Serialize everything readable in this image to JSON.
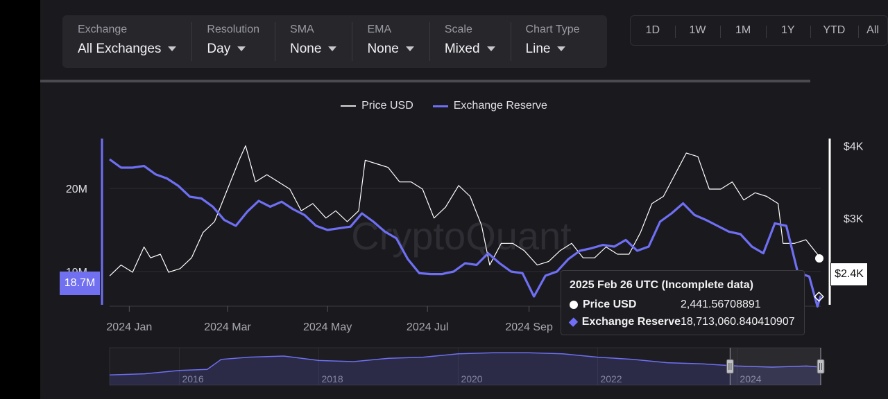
{
  "toolbar": {
    "groups": [
      {
        "label": "Exchange",
        "value": "All Exchanges"
      },
      {
        "label": "Resolution",
        "value": "Day"
      },
      {
        "label": "SMA",
        "value": "None"
      },
      {
        "label": "EMA",
        "value": "None"
      },
      {
        "label": "Scale",
        "value": "Mixed"
      },
      {
        "label": "Chart Type",
        "value": "Line"
      }
    ]
  },
  "ranges": [
    "1D",
    "1W",
    "1M",
    "1Y",
    "YTD",
    "All"
  ],
  "legend": {
    "price": "Price USD",
    "reserve": "Exchange Reserve"
  },
  "watermark": "CryptoQuant",
  "colors": {
    "price": "#ffffff",
    "reserve": "#6f6ff5",
    "background": "#1a1a1e",
    "panel": "#26262b"
  },
  "tooltip": {
    "title": "2025 Feb 26 UTC (Incomplete data)",
    "rows": [
      {
        "name": "Price USD",
        "value": "2,441.56708891"
      },
      {
        "name": "Exchange Reserve",
        "value": "18,713,060.840410907"
      }
    ]
  },
  "badges": {
    "left": "18.7M",
    "right": "$2.4K"
  },
  "chart_data": {
    "type": "line",
    "title": "",
    "x_labels": [
      "2024 Jan",
      "2024 Mar",
      "2024 May",
      "2024 Jul",
      "2024 Sep"
    ],
    "y_left_labels": [
      "20M",
      "19M"
    ],
    "y_right_labels": [
      "$4K",
      "$3K"
    ],
    "ylim_left": [
      18.6,
      20.6
    ],
    "ylim_right": [
      1800,
      4100
    ],
    "x_start": "2023-12-20",
    "x_end": "2025-02-26",
    "series": [
      {
        "name": "Price USD",
        "axis": "right",
        "points": [
          [
            "2023-12-20",
            2200
          ],
          [
            "2023-12-27",
            2350
          ],
          [
            "2024-01-03",
            2250
          ],
          [
            "2024-01-10",
            2600
          ],
          [
            "2024-01-14",
            2450
          ],
          [
            "2024-01-20",
            2500
          ],
          [
            "2024-01-25",
            2250
          ],
          [
            "2024-02-01",
            2300
          ],
          [
            "2024-02-08",
            2450
          ],
          [
            "2024-02-15",
            2800
          ],
          [
            "2024-02-22",
            2950
          ],
          [
            "2024-03-01",
            3400
          ],
          [
            "2024-03-08",
            3800
          ],
          [
            "2024-03-12",
            4000
          ],
          [
            "2024-03-18",
            3500
          ],
          [
            "2024-03-25",
            3600
          ],
          [
            "2024-04-01",
            3500
          ],
          [
            "2024-04-08",
            3400
          ],
          [
            "2024-04-15",
            3100
          ],
          [
            "2024-04-22",
            3200
          ],
          [
            "2024-04-30",
            3000
          ],
          [
            "2024-05-06",
            3100
          ],
          [
            "2024-05-13",
            2950
          ],
          [
            "2024-05-20",
            3100
          ],
          [
            "2024-05-24",
            3800
          ],
          [
            "2024-05-31",
            3750
          ],
          [
            "2024-06-07",
            3700
          ],
          [
            "2024-06-14",
            3500
          ],
          [
            "2024-06-21",
            3500
          ],
          [
            "2024-06-28",
            3400
          ],
          [
            "2024-07-05",
            3000
          ],
          [
            "2024-07-12",
            3150
          ],
          [
            "2024-07-20",
            3450
          ],
          [
            "2024-07-27",
            3300
          ],
          [
            "2024-08-03",
            2900
          ],
          [
            "2024-08-08",
            2350
          ],
          [
            "2024-08-15",
            2650
          ],
          [
            "2024-08-22",
            2650
          ],
          [
            "2024-08-29",
            2550
          ],
          [
            "2024-09-06",
            2350
          ],
          [
            "2024-09-13",
            2400
          ],
          [
            "2024-09-20",
            2550
          ],
          [
            "2024-09-27",
            2650
          ],
          [
            "2024-10-04",
            2450
          ],
          [
            "2024-10-11",
            2450
          ],
          [
            "2024-10-18",
            2600
          ],
          [
            "2024-10-25",
            2500
          ],
          [
            "2024-11-01",
            2500
          ],
          [
            "2024-11-08",
            2800
          ],
          [
            "2024-11-15",
            3200
          ],
          [
            "2024-11-22",
            3300
          ],
          [
            "2024-11-29",
            3600
          ],
          [
            "2024-12-06",
            3900
          ],
          [
            "2024-12-13",
            3850
          ],
          [
            "2024-12-20",
            3400
          ],
          [
            "2024-12-27",
            3400
          ],
          [
            "2025-01-03",
            3500
          ],
          [
            "2025-01-10",
            3250
          ],
          [
            "2025-01-17",
            3350
          ],
          [
            "2025-01-24",
            3300
          ],
          [
            "2025-01-31",
            3200
          ],
          [
            "2025-02-03",
            2650
          ],
          [
            "2025-02-10",
            2650
          ],
          [
            "2025-02-17",
            2700
          ],
          [
            "2025-02-24",
            2500
          ],
          [
            "2025-02-26",
            2442
          ]
        ]
      },
      {
        "name": "Exchange Reserve",
        "axis": "left",
        "points": [
          [
            "2023-12-20",
            20.35
          ],
          [
            "2023-12-27",
            20.25
          ],
          [
            "2024-01-03",
            20.25
          ],
          [
            "2024-01-10",
            20.27
          ],
          [
            "2024-01-17",
            20.17
          ],
          [
            "2024-01-24",
            20.12
          ],
          [
            "2024-01-31",
            20.03
          ],
          [
            "2024-02-07",
            19.9
          ],
          [
            "2024-02-14",
            19.88
          ],
          [
            "2024-02-21",
            19.78
          ],
          [
            "2024-02-28",
            19.62
          ],
          [
            "2024-03-06",
            19.55
          ],
          [
            "2024-03-13",
            19.72
          ],
          [
            "2024-03-20",
            19.85
          ],
          [
            "2024-03-27",
            19.78
          ],
          [
            "2024-04-03",
            19.84
          ],
          [
            "2024-04-10",
            19.75
          ],
          [
            "2024-04-17",
            19.68
          ],
          [
            "2024-04-24",
            19.55
          ],
          [
            "2024-05-01",
            19.5
          ],
          [
            "2024-05-08",
            19.52
          ],
          [
            "2024-05-15",
            19.54
          ],
          [
            "2024-05-22",
            19.7
          ],
          [
            "2024-05-29",
            19.6
          ],
          [
            "2024-06-05",
            19.48
          ],
          [
            "2024-06-12",
            19.4
          ],
          [
            "2024-06-19",
            19.15
          ],
          [
            "2024-06-26",
            18.98
          ],
          [
            "2024-07-03",
            18.97
          ],
          [
            "2024-07-10",
            18.97
          ],
          [
            "2024-07-17",
            19.0
          ],
          [
            "2024-07-24",
            19.1
          ],
          [
            "2024-07-31",
            19.08
          ],
          [
            "2024-08-07",
            19.22
          ],
          [
            "2024-08-14",
            19.1
          ],
          [
            "2024-08-21",
            19.0
          ],
          [
            "2024-08-28",
            18.98
          ],
          [
            "2024-09-04",
            18.7
          ],
          [
            "2024-09-11",
            18.95
          ],
          [
            "2024-09-18",
            19.0
          ],
          [
            "2024-09-25",
            19.15
          ],
          [
            "2024-10-02",
            19.25
          ],
          [
            "2024-10-09",
            19.28
          ],
          [
            "2024-10-16",
            19.32
          ],
          [
            "2024-10-23",
            19.3
          ],
          [
            "2024-10-30",
            19.38
          ],
          [
            "2024-11-06",
            19.25
          ],
          [
            "2024-11-13",
            19.3
          ],
          [
            "2024-11-20",
            19.6
          ],
          [
            "2024-11-27",
            19.7
          ],
          [
            "2024-12-04",
            19.82
          ],
          [
            "2024-12-11",
            19.68
          ],
          [
            "2024-12-18",
            19.62
          ],
          [
            "2024-12-25",
            19.55
          ],
          [
            "2025-01-01",
            19.48
          ],
          [
            "2025-01-08",
            19.45
          ],
          [
            "2025-01-15",
            19.3
          ],
          [
            "2025-01-22",
            19.22
          ],
          [
            "2025-01-29",
            19.58
          ],
          [
            "2025-02-05",
            19.55
          ],
          [
            "2025-02-12",
            18.99
          ],
          [
            "2025-02-19",
            18.94
          ],
          [
            "2025-02-24",
            18.58
          ],
          [
            "2025-02-26",
            18.71
          ]
        ]
      }
    ],
    "navigator": {
      "x_labels": [
        "2016",
        "2018",
        "2020",
        "2022",
        "2024"
      ],
      "series_name": "Exchange Reserve",
      "points": [
        [
          "2015",
          8
        ],
        [
          "2015.5",
          9
        ],
        [
          "2016",
          12
        ],
        [
          "2016.4",
          13
        ],
        [
          "2016.6",
          22
        ],
        [
          "2017",
          24
        ],
        [
          "2017.5",
          25
        ],
        [
          "2018",
          21
        ],
        [
          "2018.5",
          20
        ],
        [
          "2019",
          23
        ],
        [
          "2019.5",
          24
        ],
        [
          "2020",
          27
        ],
        [
          "2020.5",
          28
        ],
        [
          "2021",
          28
        ],
        [
          "2021.5",
          27
        ],
        [
          "2022",
          24
        ],
        [
          "2022.5",
          22
        ],
        [
          "2023",
          19
        ],
        [
          "2023.5",
          18
        ],
        [
          "2024",
          16
        ],
        [
          "2024.5",
          15
        ],
        [
          "2025",
          16
        ],
        [
          "2025.2",
          15
        ]
      ],
      "selection": [
        "2023.9",
        "2025.2"
      ]
    }
  }
}
